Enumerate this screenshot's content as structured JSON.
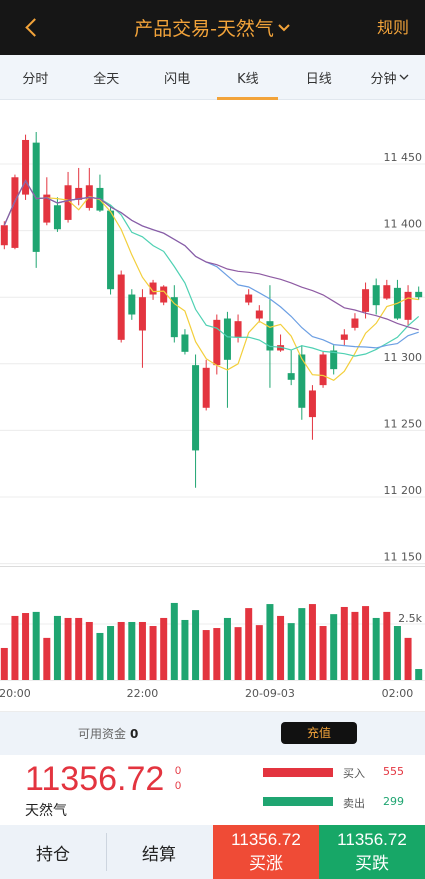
{
  "header": {
    "back_icon": "chevron-left-icon",
    "title": "产品交易-天然气",
    "title_icon": "chevron-down-icon",
    "rules_label": "规则"
  },
  "tabs": [
    {
      "label": "分时"
    },
    {
      "label": "全天"
    },
    {
      "label": "闪电"
    },
    {
      "label": "K线",
      "active": true
    },
    {
      "label": "日线"
    },
    {
      "label": "分钟",
      "icon": "chevron-down-icon"
    }
  ],
  "chart_data": [
    {
      "type": "candlestick",
      "title": "",
      "ylim": [
        11149,
        11498
      ],
      "grid": true,
      "y_axis_side": "right",
      "gridlines": [
        11450,
        11400,
        11350,
        11300,
        11250,
        11200,
        11150
      ],
      "y_tick_labels": [
        {
          "value": 11450,
          "label": "11 450"
        },
        {
          "value": 11400,
          "label": "11 400"
        },
        {
          "value": 11300,
          "label": "11 300"
        },
        {
          "value": 11250,
          "label": "11 250"
        },
        {
          "value": 11200,
          "label": "11 200"
        },
        {
          "value": 11150,
          "label": "11 150"
        }
      ],
      "line_colors": [
        "#f3cf3c",
        "#4fd1b3",
        "#6c9fe3",
        "#8e5ba3"
      ],
      "candles": [
        {
          "open": 11389,
          "high": 11407,
          "low": 11386,
          "close": 11404
        },
        {
          "open": 11387,
          "high": 11442,
          "low": 11386,
          "close": 11440
        },
        {
          "open": 11427,
          "high": 11472,
          "low": 11423,
          "close": 11468
        },
        {
          "open": 11466,
          "high": 11474,
          "low": 11372,
          "close": 11384
        },
        {
          "open": 11406,
          "high": 11440,
          "low": 11404,
          "close": 11427
        },
        {
          "open": 11419,
          "high": 11425,
          "low": 11399,
          "close": 11401
        },
        {
          "open": 11408,
          "high": 11444,
          "low": 11406,
          "close": 11434
        },
        {
          "open": 11423,
          "high": 11447,
          "low": 11419,
          "close": 11432
        },
        {
          "open": 11417,
          "high": 11447,
          "low": 11415,
          "close": 11434
        },
        {
          "open": 11432,
          "high": 11442,
          "low": 11414,
          "close": 11415
        },
        {
          "open": 11415,
          "high": 11419,
          "low": 11352,
          "close": 11356
        },
        {
          "open": 11318,
          "high": 11370,
          "low": 11316,
          "close": 11367
        },
        {
          "open": 11352,
          "high": 11356,
          "low": 11333,
          "close": 11337
        },
        {
          "open": 11325,
          "high": 11356,
          "low": 11297,
          "close": 11350
        },
        {
          "open": 11352,
          "high": 11363,
          "low": 11348,
          "close": 11361
        },
        {
          "open": 11346,
          "high": 11359,
          "low": 11344,
          "close": 11358
        },
        {
          "open": 11350,
          "high": 11359,
          "low": 11316,
          "close": 11320
        },
        {
          "open": 11322,
          "high": 11326,
          "low": 11307,
          "close": 11309
        },
        {
          "open": 11299,
          "high": 11307,
          "low": 11207,
          "close": 11235
        },
        {
          "open": 11267,
          "high": 11303,
          "low": 11265,
          "close": 11297
        },
        {
          "open": 11299,
          "high": 11337,
          "low": 11292,
          "close": 11333
        },
        {
          "open": 11334,
          "high": 11339,
          "low": 11267,
          "close": 11303
        },
        {
          "open": 11320,
          "high": 11337,
          "low": 11316,
          "close": 11332
        },
        {
          "open": 11346,
          "high": 11356,
          "low": 11344,
          "close": 11352
        },
        {
          "open": 11334,
          "high": 11344,
          "low": 11331,
          "close": 11340
        },
        {
          "open": 11332,
          "high": 11359,
          "low": 11282,
          "close": 11310
        },
        {
          "open": 11310,
          "high": 11322,
          "low": 11309,
          "close": 11314
        },
        {
          "open": 11293,
          "high": 11310,
          "low": 11284,
          "close": 11288
        },
        {
          "open": 11307,
          "high": 11314,
          "low": 11258,
          "close": 11267
        },
        {
          "open": 11260,
          "high": 11284,
          "low": 11243,
          "close": 11280
        },
        {
          "open": 11284,
          "high": 11309,
          "low": 11282,
          "close": 11307
        },
        {
          "open": 11310,
          "high": 11314,
          "low": 11292,
          "close": 11296
        },
        {
          "open": 11318,
          "high": 11326,
          "low": 11314,
          "close": 11322
        },
        {
          "open": 11327,
          "high": 11338,
          "low": 11325,
          "close": 11334
        },
        {
          "open": 11339,
          "high": 11361,
          "low": 11334,
          "close": 11356
        },
        {
          "open": 11359,
          "high": 11364,
          "low": 11337,
          "close": 11344
        },
        {
          "open": 11349,
          "high": 11363,
          "low": 11348,
          "close": 11359
        },
        {
          "open": 11357,
          "high": 11363,
          "low": 11333,
          "close": 11334
        },
        {
          "open": 11333,
          "high": 11359,
          "low": 11329,
          "close": 11354
        },
        {
          "open": 11354,
          "high": 11358,
          "low": 11348,
          "close": 11350
        }
      ]
    },
    {
      "type": "bar",
      "title": "",
      "ylim": [
        0,
        5000
      ],
      "y_tick_labels": [
        {
          "value": 2500,
          "label": "2.5k"
        }
      ],
      "x_tick_labels": [
        {
          "index": 1,
          "label": "20:00"
        },
        {
          "index": 13,
          "label": "22:00"
        },
        {
          "index": 25,
          "label": "20-09-03"
        },
        {
          "index": 37,
          "label": "02:00"
        }
      ],
      "values": [
        1430,
        2860,
        2990,
        3040,
        1880,
        2860,
        2770,
        2770,
        2590,
        2100,
        2410,
        2590,
        2590,
        2590,
        2410,
        2770,
        3440,
        2680,
        3120,
        2230,
        2320,
        2770,
        2360,
        3210,
        2450,
        3390,
        2860,
        2540,
        3210,
        3390,
        2410,
        2940,
        3260,
        3040,
        3300,
        2770,
        3040,
        2410,
        1880,
        490
      ]
    }
  ],
  "funds": {
    "label": "可用资金",
    "value": "0",
    "recharge_label": "充值"
  },
  "quote": {
    "price": "11356.72",
    "delta": [
      "0",
      "0"
    ],
    "name": "天然气"
  },
  "order_flow": {
    "buy_label": "买入",
    "buy_count": "555",
    "sell_label": "卖出",
    "sell_count": "299"
  },
  "bottom_bar": {
    "positions_label": "持仓",
    "settlement_label": "结算",
    "buy_up": {
      "price": "11356.72",
      "label": "买涨"
    },
    "buy_down": {
      "price": "11356.72",
      "label": "买跌"
    }
  },
  "colors": {
    "header_bg": "#161616",
    "accent": "#f2a33a",
    "up": "#e3343f",
    "down": "#1fa571",
    "panel_bg": "#eef3f9",
    "buy_up_button": "#ef4b36",
    "buy_down_button": "#17a767"
  }
}
